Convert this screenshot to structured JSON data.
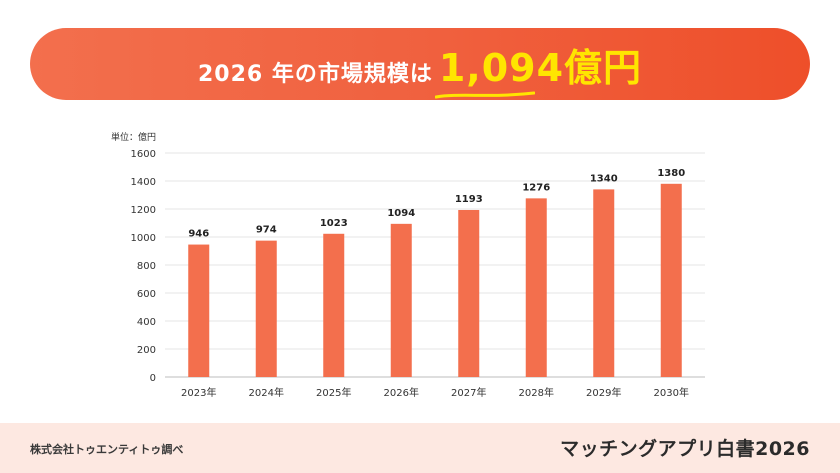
{
  "header": {
    "title_prefix": "2026 年の市場規模は",
    "title_highlight": "1,094億円"
  },
  "colors": {
    "banner": "#f0613f",
    "highlight": "#ffe500",
    "bar": "#f36f4d",
    "footer_bg": "#fde8e1"
  },
  "chart_data": {
    "type": "bar",
    "unit_label": "単位：億円",
    "categories": [
      "2023年",
      "2024年",
      "2025年",
      "2026年",
      "2027年",
      "2028年",
      "2029年",
      "2030年"
    ],
    "values": [
      946,
      974,
      1023,
      1094,
      1193,
      1276,
      1340,
      1380
    ],
    "ylim": [
      0,
      1600
    ],
    "yticks": [
      0,
      200,
      400,
      600,
      800,
      1000,
      1200,
      1400,
      1600
    ],
    "grid": true,
    "data_labels": true
  },
  "footer": {
    "source": "株式会社トゥエンティトゥ調べ",
    "brand": "マッチングアプリ白書2026"
  }
}
